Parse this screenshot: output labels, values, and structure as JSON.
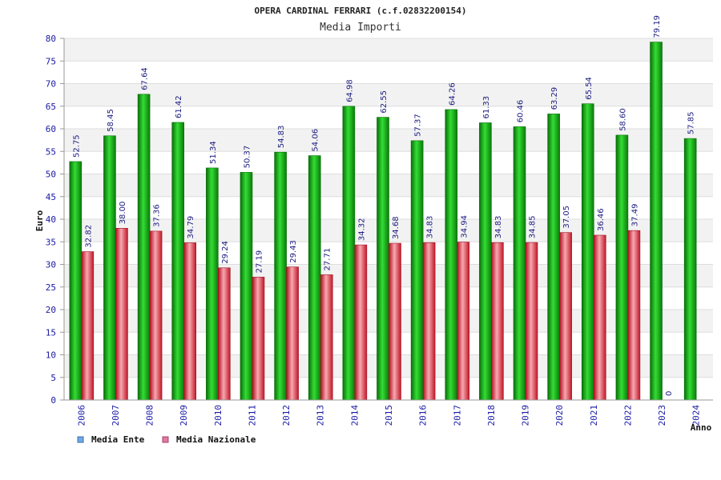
{
  "chart_data": {
    "type": "bar",
    "title": "OPERA CARDINAL FERRARI (c.f.02832200154)",
    "subtitle": "Media Importi",
    "ylabel": "Euro",
    "xlabel": "Anno",
    "ylim": [
      0,
      80
    ],
    "yticks": [
      0,
      5,
      10,
      15,
      20,
      25,
      30,
      35,
      40,
      45,
      50,
      55,
      60,
      65,
      70,
      75,
      80
    ],
    "grid": true,
    "legend_position": "bottom-left",
    "categories": [
      "2006",
      "2007",
      "2008",
      "2009",
      "2010",
      "2011",
      "2012",
      "2013",
      "2014",
      "2015",
      "2016",
      "2017",
      "2018",
      "2019",
      "2020",
      "2021",
      "2022",
      "2023",
      "2024"
    ],
    "series": [
      {
        "name": "Media Ente",
        "color": "#11aa11",
        "legend_color": "#6fa8e6",
        "values": [
          52.75,
          58.45,
          67.64,
          61.42,
          51.34,
          50.37,
          54.83,
          54.06,
          64.98,
          62.55,
          57.37,
          64.26,
          61.33,
          60.46,
          63.29,
          65.54,
          58.6,
          79.19,
          57.85
        ],
        "labels": [
          "52.75",
          "58.45",
          "67.64",
          "61.42",
          "51.34",
          "50.37",
          "54.83",
          "54.06",
          "64.98",
          "62.55",
          "57.37",
          "64.26",
          "61.33",
          "60.46",
          "63.29",
          "65.54",
          "58.60",
          "79.19",
          "57.85"
        ]
      },
      {
        "name": "Media Nazionale",
        "color": "#dd2233",
        "legend_color": "#e07aa0",
        "values": [
          32.82,
          38.0,
          37.36,
          34.79,
          29.24,
          27.19,
          29.43,
          27.71,
          34.32,
          34.68,
          34.83,
          34.94,
          34.83,
          34.85,
          37.05,
          36.46,
          37.49,
          0,
          0
        ],
        "labels": [
          "32.82",
          "38.00",
          "37.36",
          "34.79",
          "29.24",
          "27.19",
          "29.43",
          "27.71",
          "34.32",
          "34.68",
          "34.83",
          "34.94",
          "34.83",
          "34.85",
          "37.05",
          "36.46",
          "37.49",
          "0",
          ""
        ]
      }
    ]
  }
}
